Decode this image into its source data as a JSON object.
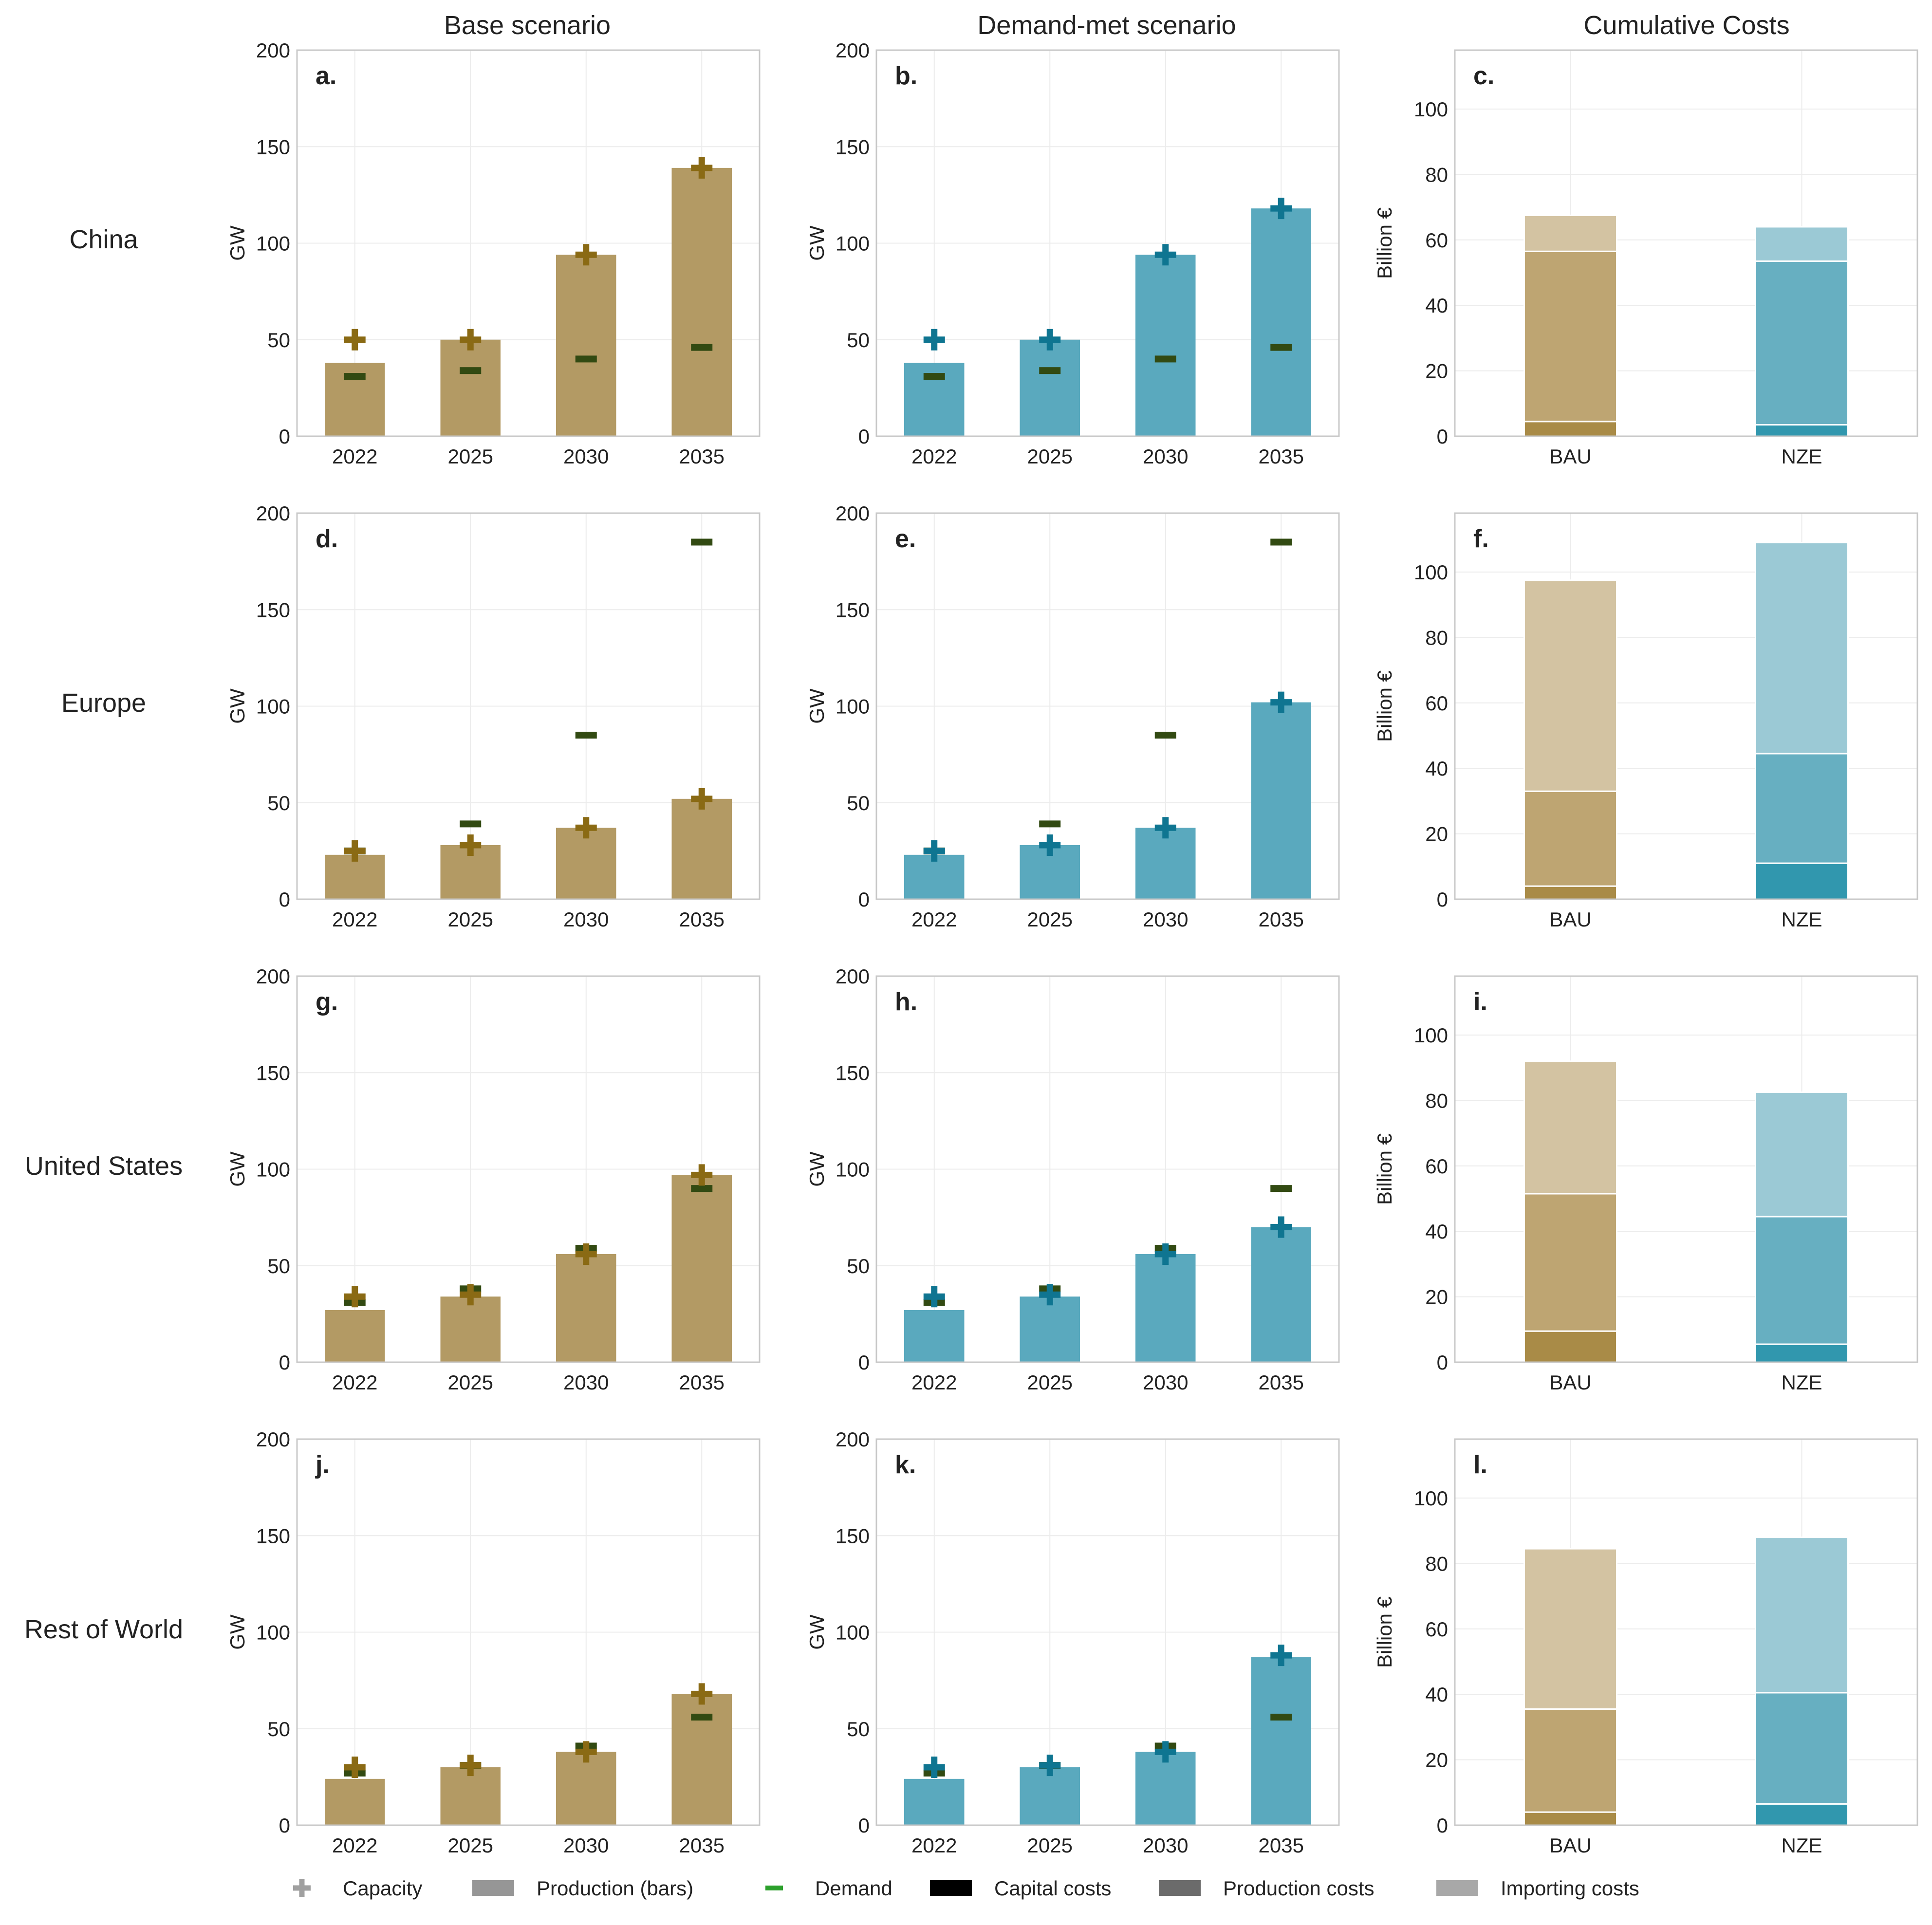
{
  "column_titles": [
    "Base scenario",
    "Demand-met scenario",
    "Cumulative Costs"
  ],
  "row_titles": [
    "China",
    "Europe",
    "United States",
    "Rest of World"
  ],
  "colors": {
    "base_bar": "#b39a64",
    "base_marker": "#8a6a14",
    "demand_met_bar": "#5aa9be",
    "demand_met_marker": "#0f7591",
    "demand_marker": "#324a12",
    "cost_bau": [
      "#a98b47",
      "#bea572",
      "#d3c3a2"
    ],
    "cost_nze": [
      "#3197ae",
      "#67afc1",
      "#9bc9d5"
    ]
  },
  "legend": [
    {
      "label": "Capacity",
      "kind": "plus",
      "color": "#a0a0a0"
    },
    {
      "label": "Production (bars)",
      "kind": "box",
      "color": "#969696"
    },
    {
      "label": "Demand",
      "kind": "dash",
      "color": "#2ca02c"
    },
    {
      "label": "Capital costs",
      "kind": "box",
      "color": "#000000"
    },
    {
      "label": "Production costs",
      "kind": "box",
      "color": "#6b6b6b"
    },
    {
      "label": "Importing costs",
      "kind": "box",
      "color": "#a8a8a8"
    }
  ],
  "chart_data": [
    {
      "panel": "a.",
      "type": "bar",
      "categories": [
        "2022",
        "2025",
        "2030",
        "2035"
      ],
      "ylabel": "GW",
      "ylim": [
        0,
        200
      ],
      "yticks": [
        0,
        50,
        100,
        150,
        200
      ],
      "grid": true,
      "series": [
        {
          "name": "Production (bars)",
          "values": [
            38,
            50,
            94,
            139
          ]
        },
        {
          "name": "Capacity",
          "values": [
            50,
            50,
            94,
            139
          ]
        },
        {
          "name": "Demand",
          "values": [
            31,
            34,
            40,
            46
          ]
        }
      ]
    },
    {
      "panel": "b.",
      "type": "bar",
      "categories": [
        "2022",
        "2025",
        "2030",
        "2035"
      ],
      "ylabel": "GW",
      "ylim": [
        0,
        200
      ],
      "yticks": [
        0,
        50,
        100,
        150,
        200
      ],
      "grid": true,
      "series": [
        {
          "name": "Production (bars)",
          "values": [
            38,
            50,
            94,
            118
          ]
        },
        {
          "name": "Capacity",
          "values": [
            50,
            50,
            94,
            118
          ]
        },
        {
          "name": "Demand",
          "values": [
            31,
            34,
            40,
            46
          ]
        }
      ]
    },
    {
      "panel": "c.",
      "type": "bar",
      "stacked": true,
      "categories": [
        "BAU",
        "NZE"
      ],
      "ylabel": "Billion €",
      "ylim": [
        0,
        118
      ],
      "yticks": [
        0,
        20,
        40,
        60,
        80,
        100
      ],
      "grid": true,
      "series": [
        {
          "name": "Capital costs",
          "values": [
            4.5,
            3.5
          ]
        },
        {
          "name": "Production costs",
          "values": [
            52,
            50
          ]
        },
        {
          "name": "Importing costs",
          "values": [
            11,
            10.5
          ]
        }
      ]
    },
    {
      "panel": "d.",
      "type": "bar",
      "categories": [
        "2022",
        "2025",
        "2030",
        "2035"
      ],
      "ylabel": "GW",
      "ylim": [
        0,
        200
      ],
      "yticks": [
        0,
        50,
        100,
        150,
        200
      ],
      "grid": true,
      "series": [
        {
          "name": "Production (bars)",
          "values": [
            23,
            28,
            37,
            52
          ]
        },
        {
          "name": "Capacity",
          "values": [
            25,
            28,
            37,
            52
          ]
        },
        {
          "name": "Demand",
          "values": [
            25,
            39,
            85,
            185
          ]
        }
      ]
    },
    {
      "panel": "e.",
      "type": "bar",
      "categories": [
        "2022",
        "2025",
        "2030",
        "2035"
      ],
      "ylabel": "GW",
      "ylim": [
        0,
        200
      ],
      "yticks": [
        0,
        50,
        100,
        150,
        200
      ],
      "grid": true,
      "series": [
        {
          "name": "Production (bars)",
          "values": [
            23,
            28,
            37,
            102
          ]
        },
        {
          "name": "Capacity",
          "values": [
            25,
            28,
            37,
            102
          ]
        },
        {
          "name": "Demand",
          "values": [
            25,
            39,
            85,
            185
          ]
        }
      ]
    },
    {
      "panel": "f.",
      "type": "bar",
      "stacked": true,
      "categories": [
        "BAU",
        "NZE"
      ],
      "ylabel": "Billion €",
      "ylim": [
        0,
        118
      ],
      "yticks": [
        0,
        20,
        40,
        60,
        80,
        100
      ],
      "grid": true,
      "series": [
        {
          "name": "Capital costs",
          "values": [
            4,
            11
          ]
        },
        {
          "name": "Production costs",
          "values": [
            29,
            33.5
          ]
        },
        {
          "name": "Importing costs",
          "values": [
            64.5,
            64.5
          ]
        }
      ]
    },
    {
      "panel": "g.",
      "type": "bar",
      "categories": [
        "2022",
        "2025",
        "2030",
        "2035"
      ],
      "ylabel": "GW",
      "ylim": [
        0,
        200
      ],
      "yticks": [
        0,
        50,
        100,
        150,
        200
      ],
      "grid": true,
      "series": [
        {
          "name": "Production (bars)",
          "values": [
            27,
            34,
            56,
            97
          ]
        },
        {
          "name": "Capacity",
          "values": [
            34,
            35,
            56,
            97
          ]
        },
        {
          "name": "Demand",
          "values": [
            31,
            38,
            59,
            90
          ]
        }
      ]
    },
    {
      "panel": "h.",
      "type": "bar",
      "categories": [
        "2022",
        "2025",
        "2030",
        "2035"
      ],
      "ylabel": "GW",
      "ylim": [
        0,
        200
      ],
      "yticks": [
        0,
        50,
        100,
        150,
        200
      ],
      "grid": true,
      "series": [
        {
          "name": "Production (bars)",
          "values": [
            27,
            34,
            56,
            70
          ]
        },
        {
          "name": "Capacity",
          "values": [
            34,
            35,
            56,
            70
          ]
        },
        {
          "name": "Demand",
          "values": [
            31,
            38,
            59,
            90
          ]
        }
      ]
    },
    {
      "panel": "i.",
      "type": "bar",
      "stacked": true,
      "categories": [
        "BAU",
        "NZE"
      ],
      "ylabel": "Billion €",
      "ylim": [
        0,
        118
      ],
      "yticks": [
        0,
        20,
        40,
        60,
        80,
        100
      ],
      "grid": true,
      "series": [
        {
          "name": "Capital costs",
          "values": [
            9.5,
            5.5
          ]
        },
        {
          "name": "Production costs",
          "values": [
            42,
            39
          ]
        },
        {
          "name": "Importing costs",
          "values": [
            40.5,
            38
          ]
        }
      ]
    },
    {
      "panel": "j.",
      "type": "bar",
      "categories": [
        "2022",
        "2025",
        "2030",
        "2035"
      ],
      "ylabel": "GW",
      "ylim": [
        0,
        200
      ],
      "yticks": [
        0,
        50,
        100,
        150,
        200
      ],
      "grid": true,
      "series": [
        {
          "name": "Production (bars)",
          "values": [
            24,
            30,
            38,
            68
          ]
        },
        {
          "name": "Capacity",
          "values": [
            30,
            31,
            38,
            68
          ]
        },
        {
          "name": "Demand",
          "values": [
            27,
            31,
            41,
            56
          ]
        }
      ]
    },
    {
      "panel": "k.",
      "type": "bar",
      "categories": [
        "2022",
        "2025",
        "2030",
        "2035"
      ],
      "ylabel": "GW",
      "ylim": [
        0,
        200
      ],
      "yticks": [
        0,
        50,
        100,
        150,
        200
      ],
      "grid": true,
      "series": [
        {
          "name": "Production (bars)",
          "values": [
            24,
            30,
            38,
            87
          ]
        },
        {
          "name": "Capacity",
          "values": [
            30,
            31,
            38,
            88
          ]
        },
        {
          "name": "Demand",
          "values": [
            27,
            31,
            41,
            56
          ]
        }
      ]
    },
    {
      "panel": "l.",
      "type": "bar",
      "stacked": true,
      "categories": [
        "BAU",
        "NZE"
      ],
      "ylabel": "Billion €",
      "ylim": [
        0,
        118
      ],
      "yticks": [
        0,
        20,
        40,
        60,
        80,
        100
      ],
      "grid": true,
      "series": [
        {
          "name": "Capital costs",
          "values": [
            4,
            6.5
          ]
        },
        {
          "name": "Production costs",
          "values": [
            31.5,
            34
          ]
        },
        {
          "name": "Importing costs",
          "values": [
            49,
            47.5
          ]
        }
      ]
    }
  ]
}
